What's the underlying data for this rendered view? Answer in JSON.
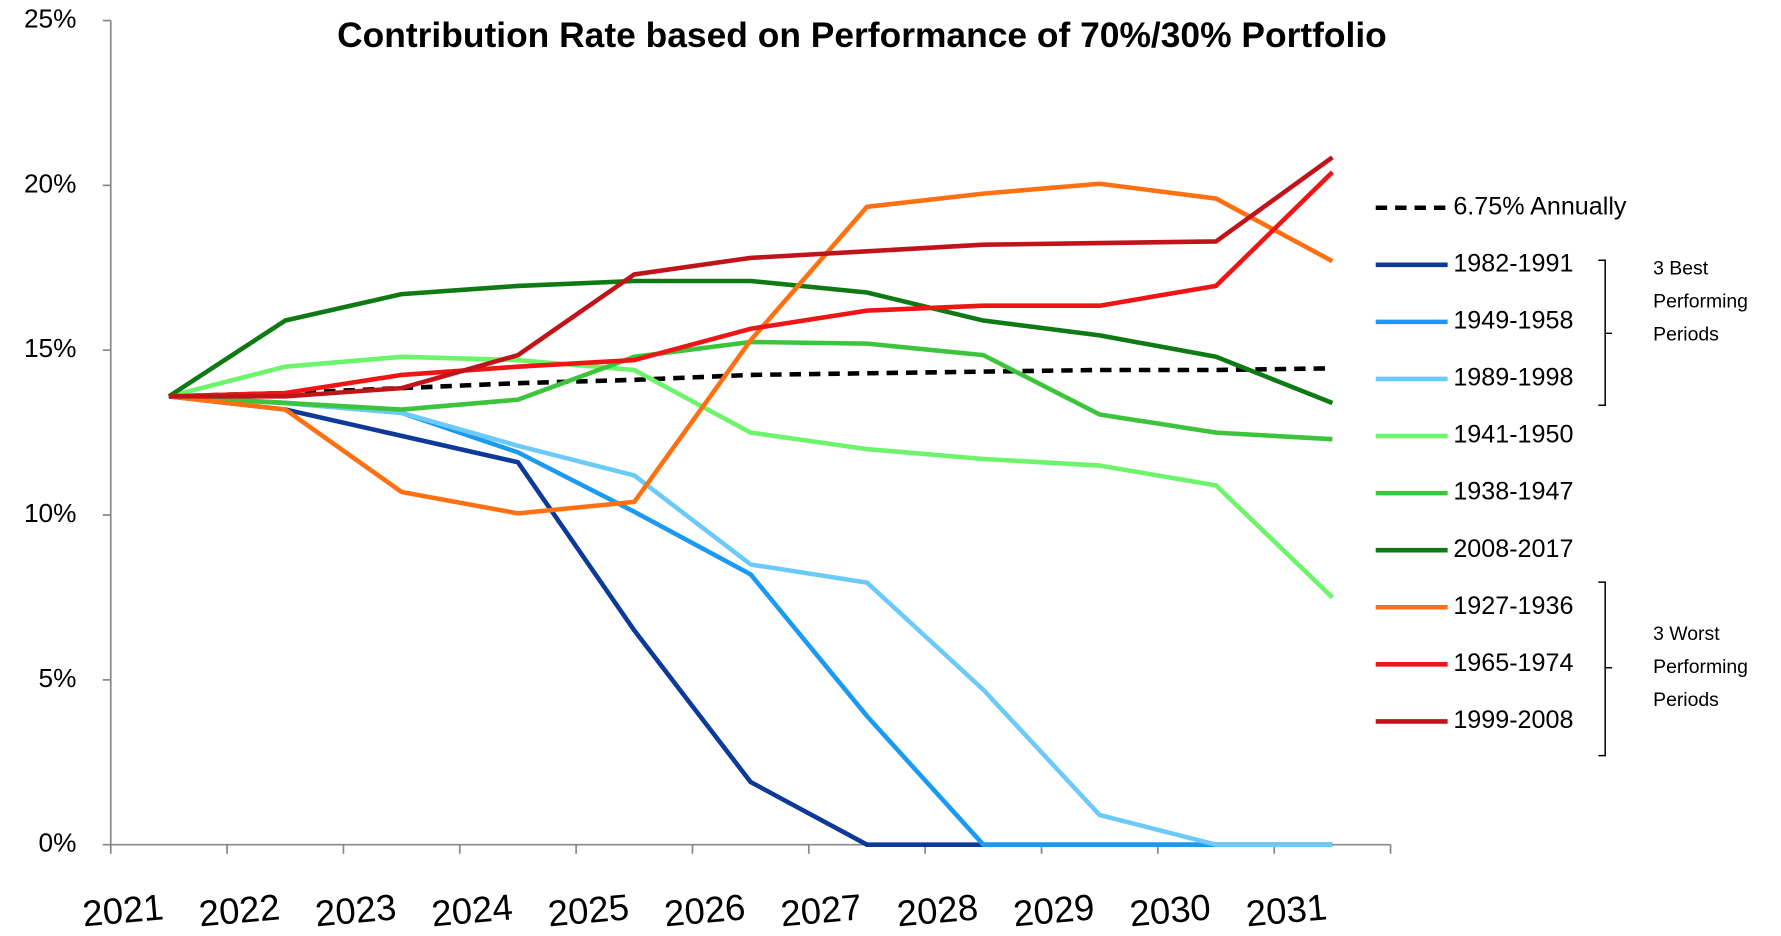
{
  "chart_data": {
    "type": "line",
    "title": "Contribution Rate based on Performance of 70%/30% Portfolio",
    "categories": [
      "2021",
      "2022",
      "2023",
      "2024",
      "2025",
      "2026",
      "2027",
      "2028",
      "2029",
      "2030",
      "2031"
    ],
    "ylim": [
      0,
      25
    ],
    "yticks": [
      {
        "value": 0,
        "label": "0%"
      },
      {
        "value": 5,
        "label": "5%"
      },
      {
        "value": 10,
        "label": "10%"
      },
      {
        "value": 15,
        "label": "15%"
      },
      {
        "value": 20,
        "label": "20%"
      },
      {
        "value": 25,
        "label": "25%"
      }
    ],
    "legend": "right",
    "series": [
      {
        "name": "6.75% Annually",
        "color": "#000000",
        "dashed": true,
        "values": [
          13.6,
          13.7,
          13.85,
          14.0,
          14.1,
          14.25,
          14.3,
          14.35,
          14.4,
          14.4,
          14.45
        ]
      },
      {
        "name": "1982-1991",
        "color": "#0d3a99",
        "values": [
          13.6,
          13.2,
          12.4,
          11.6,
          6.5,
          1.9,
          0,
          0,
          0,
          0,
          0
        ]
      },
      {
        "name": "1949-1958",
        "color": "#1a9af0",
        "values": [
          13.6,
          13.4,
          13.1,
          11.9,
          10.1,
          8.2,
          3.9,
          0,
          0,
          0,
          0
        ]
      },
      {
        "name": "1989-1998",
        "color": "#6ccaf8",
        "values": [
          13.6,
          13.4,
          13.1,
          12.1,
          11.2,
          8.5,
          7.95,
          4.7,
          0.9,
          0,
          0
        ]
      },
      {
        "name": "1941-1950",
        "color": "#6cf56a",
        "values": [
          13.6,
          14.5,
          14.8,
          14.7,
          14.4,
          12.5,
          12.0,
          11.7,
          11.5,
          10.9,
          7.5
        ]
      },
      {
        "name": "1938-1947",
        "color": "#3cc43c",
        "values": [
          13.6,
          13.4,
          13.2,
          13.5,
          14.8,
          15.25,
          15.2,
          14.85,
          13.05,
          12.5,
          12.3
        ]
      },
      {
        "name": "2008-2017",
        "color": "#0f7a14",
        "values": [
          13.6,
          15.9,
          16.7,
          16.95,
          17.1,
          17.1,
          16.75,
          15.9,
          15.45,
          14.8,
          13.4
        ]
      },
      {
        "name": "1927-1936",
        "color": "#ff7010",
        "values": [
          13.6,
          13.2,
          10.7,
          10.05,
          10.4,
          15.3,
          19.35,
          19.75,
          20.05,
          19.6,
          17.7
        ]
      },
      {
        "name": "1965-1974",
        "color": "#f01414",
        "values": [
          13.6,
          13.7,
          14.25,
          14.5,
          14.7,
          15.65,
          16.2,
          16.35,
          16.35,
          16.95,
          20.4
        ]
      },
      {
        "name": "1999-2008",
        "color": "#c0141a",
        "values": [
          13.6,
          13.6,
          13.85,
          14.85,
          17.3,
          17.8,
          18.0,
          18.2,
          18.25,
          18.3,
          20.85
        ]
      }
    ],
    "annotations": [
      {
        "lines": [
          "3 Best",
          "Performing",
          "Periods"
        ]
      },
      {
        "lines": [
          "3 Worst",
          "Performing",
          "Periods"
        ]
      }
    ]
  }
}
